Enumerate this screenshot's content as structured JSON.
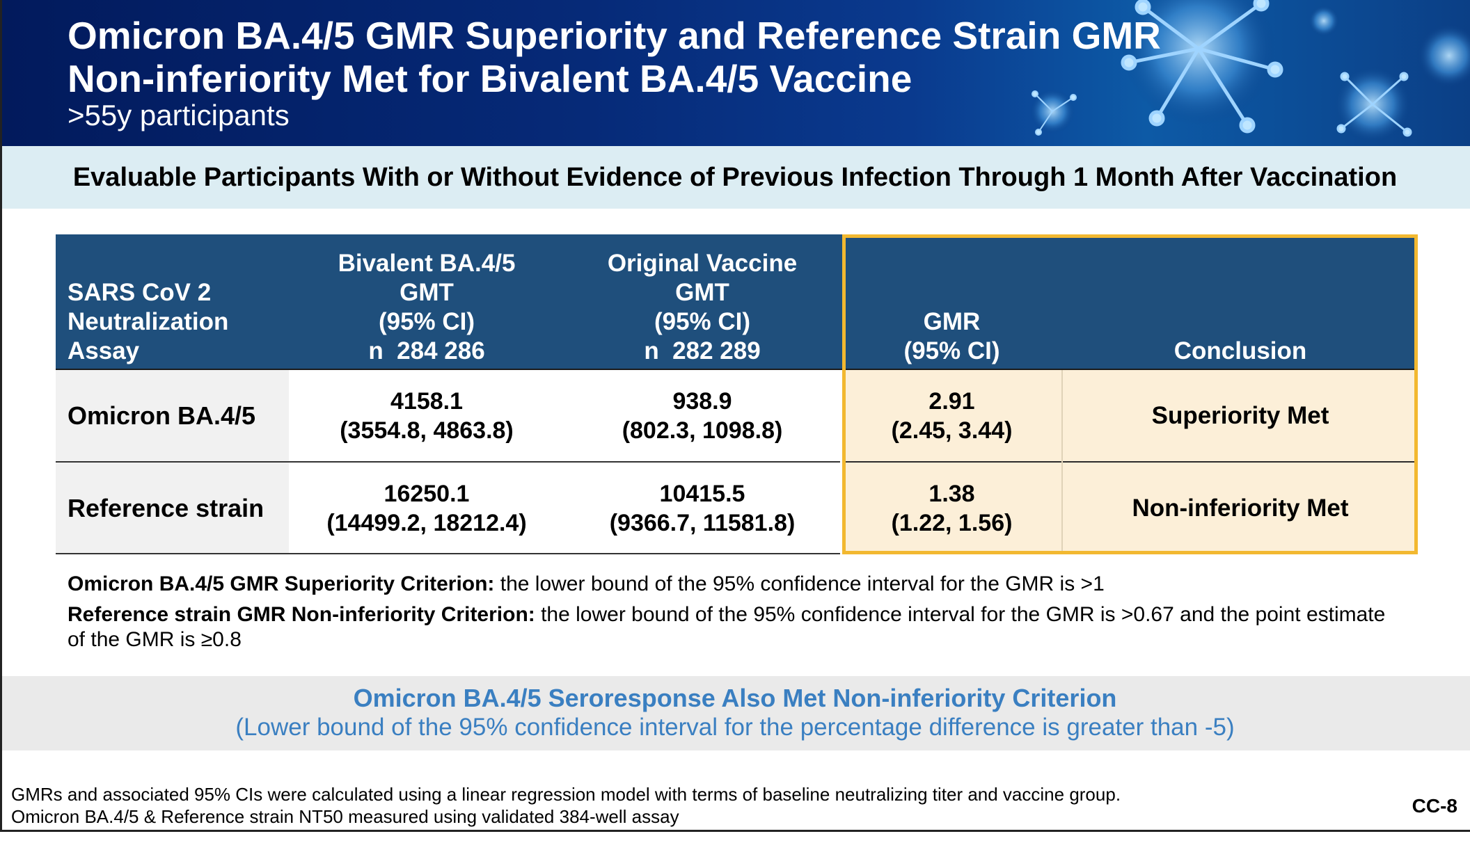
{
  "header": {
    "title_line1": "Omicron BA.4/5 GMR Superiority and Reference Strain GMR",
    "title_line2": "Non-inferiority Met for Bivalent BA.4/5 Vaccine",
    "subtitle": ">55y participants"
  },
  "subheader": "Evaluable Participants With or Without Evidence of Previous Infection Through 1 Month After Vaccination",
  "table": {
    "headers": {
      "assay": [
        "SARS CoV 2",
        "Neutralization",
        "Assay"
      ],
      "bivalent": [
        "Bivalent BA.4/5",
        "GMT",
        "(95% CI)",
        "n  284 286"
      ],
      "original": [
        "Original Vaccine",
        "GMT",
        "(95% CI)",
        "n  282 289"
      ],
      "gmr": [
        "GMR",
        "(95% CI)"
      ],
      "conclusion": "Conclusion"
    },
    "rows": [
      {
        "label": "Omicron BA.4/5",
        "bivalent": [
          "4158.1",
          "(3554.8, 4863.8)"
        ],
        "original": [
          "938.9",
          "(802.3, 1098.8)"
        ],
        "gmr": [
          "2.91",
          "(2.45, 3.44)"
        ],
        "conclusion": "Superiority Met"
      },
      {
        "label": "Reference strain",
        "bivalent": [
          "16250.1",
          "(14499.2, 18212.4)"
        ],
        "original": [
          "10415.5",
          "(9366.7, 11581.8)"
        ],
        "gmr": [
          "1.38",
          "(1.22, 1.56)"
        ],
        "conclusion": "Non-inferiority Met"
      }
    ]
  },
  "criteria": {
    "superiority_bold": "Omicron BA.4/5 GMR Superiority Criterion:",
    "superiority_text": " the lower bound of the 95% confidence interval for the GMR is >1",
    "noninferiority_bold": "Reference strain GMR Non-inferiority Criterion:",
    "noninferiority_text": " the lower bound of the 95% confidence interval for the GMR is >0.67 and the point estimate of the GMR is ≥0.8"
  },
  "callout": {
    "line1": "Omicron BA.4/5 Seroresponse Also Met Non-inferiority Criterion",
    "line2": "(Lower bound of the 95% confidence interval for the percentage difference is greater than -5)"
  },
  "footnotes": [
    "GMRs and associated 95% CIs were calculated using a linear regression model with terms of baseline neutralizing titer and vaccine group.",
    "Omicron BA.4/5 & Reference strain NT50 measured using validated 384-well assay"
  ],
  "slide_id": "CC-8",
  "colors": {
    "banner_dark": "#021a5c",
    "table_header": "#1f4f7c",
    "highlight_border": "#f2b830",
    "highlight_fill": "#fcefd8",
    "callout_text": "#3a7fc1",
    "subheader_bg": "#dcedf3"
  }
}
